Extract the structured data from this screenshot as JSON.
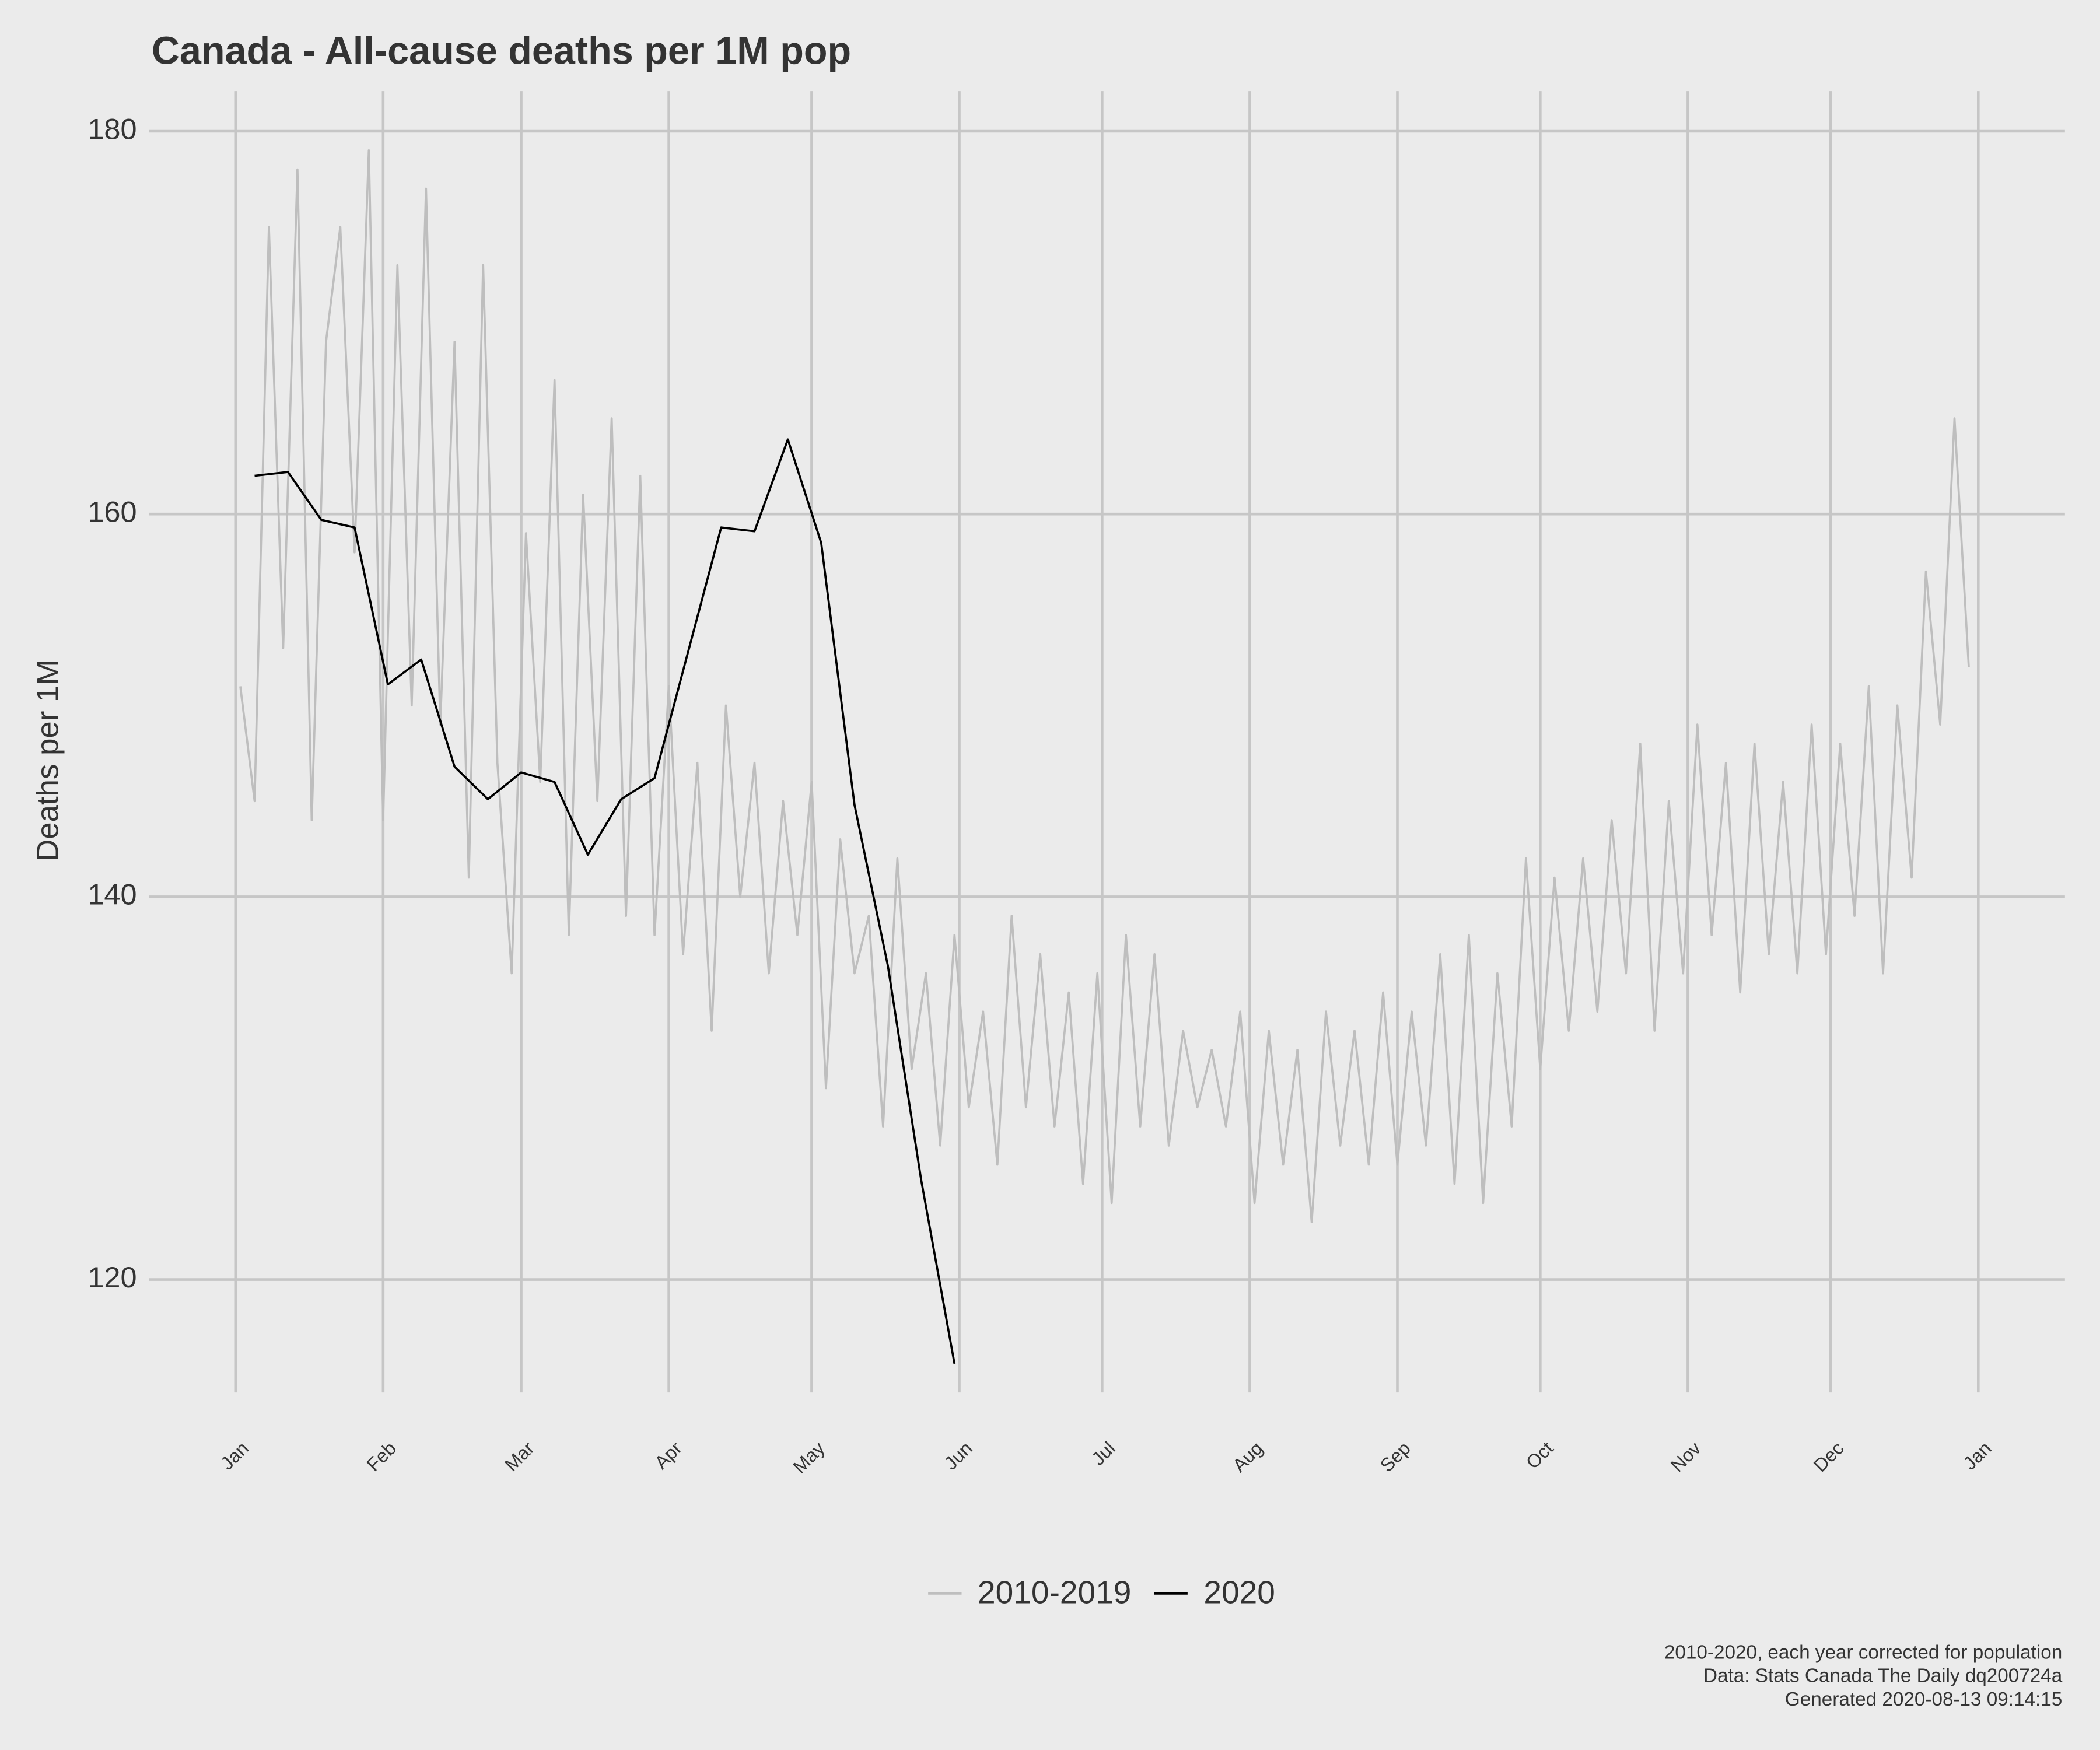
{
  "chart_data": {
    "type": "line",
    "title": "Canada - All-cause deaths per 1M pop",
    "ylabel": "Deaths per 1M",
    "caption": [
      "2010-2020, each year corrected for population",
      "Data: Stats Canada The Daily dq200724a",
      "Generated 2020-08-13 09:14:15"
    ],
    "xlim": [
      -18.2,
      384.2
    ],
    "xticks": [
      {
        "value": 0,
        "label": "Jan"
      },
      {
        "value": 31,
        "label": "Feb"
      },
      {
        "value": 60,
        "label": "Mar"
      },
      {
        "value": 91,
        "label": "Apr"
      },
      {
        "value": 121,
        "label": "May"
      },
      {
        "value": 152,
        "label": "Jun"
      },
      {
        "value": 182,
        "label": "Jul"
      },
      {
        "value": 213,
        "label": "Aug"
      },
      {
        "value": 244,
        "label": "Sep"
      },
      {
        "value": 274,
        "label": "Oct"
      },
      {
        "value": 305,
        "label": "Nov"
      },
      {
        "value": 335,
        "label": "Dec"
      },
      {
        "value": 366,
        "label": "Jan"
      }
    ],
    "ylim": [
      114.1,
      182.1
    ],
    "yticks": [
      120,
      140,
      160,
      180
    ],
    "grid": true,
    "legend": "bottom",
    "series": [
      {
        "name": "2010-2019",
        "color": "#bebebe",
        "x": [
          1,
          4,
          7,
          10,
          13,
          16,
          19,
          22,
          25,
          28,
          31,
          34,
          37,
          40,
          43,
          46,
          49,
          52,
          55,
          58,
          61,
          64,
          67,
          70,
          73,
          76,
          79,
          82,
          85,
          88,
          91,
          94,
          97,
          100,
          103,
          106,
          109,
          112,
          115,
          118,
          121,
          124,
          127,
          130,
          133,
          136,
          139,
          142,
          145,
          148,
          151,
          154,
          157,
          160,
          163,
          166,
          169,
          172,
          175,
          178,
          181,
          184,
          187,
          190,
          193,
          196,
          199,
          202,
          205,
          208,
          211,
          214,
          217,
          220,
          223,
          226,
          229,
          232,
          235,
          238,
          241,
          244,
          247,
          250,
          253,
          256,
          259,
          262,
          265,
          268,
          271,
          274,
          277,
          280,
          283,
          286,
          289,
          292,
          295,
          298,
          301,
          304,
          307,
          310,
          313,
          316,
          319,
          322,
          325,
          328,
          331,
          334,
          337,
          340,
          343,
          346,
          349,
          352,
          355,
          358,
          361,
          364
        ],
        "values": [
          151,
          145,
          175,
          153,
          178,
          144,
          169,
          175,
          158,
          179,
          144,
          173,
          150,
          177,
          149,
          169,
          141,
          173,
          147,
          136,
          159,
          146,
          167,
          138,
          161,
          145,
          165,
          139,
          162,
          138,
          151,
          137,
          147,
          133,
          150,
          140,
          147,
          136,
          145,
          138,
          146,
          130,
          143,
          136,
          139,
          128,
          142,
          131,
          136,
          127,
          138,
          129,
          134,
          126,
          139,
          129,
          137,
          128,
          135,
          125,
          136,
          124,
          138,
          128,
          137,
          127,
          133,
          129,
          132,
          128,
          134,
          124,
          133,
          126,
          132,
          123,
          134,
          127,
          133,
          126,
          135,
          126,
          134,
          127,
          137,
          125,
          138,
          124,
          136,
          128,
          142,
          131,
          141,
          133,
          142,
          134,
          144,
          136,
          148,
          133,
          145,
          136,
          149,
          138,
          147,
          135,
          148,
          137,
          146,
          136,
          149,
          137,
          148,
          139,
          151,
          136,
          150,
          141,
          157,
          149,
          165,
          152
        ]
      },
      {
        "name": "2020",
        "color": "#000000",
        "x": [
          4,
          11,
          18,
          25,
          32,
          39,
          46,
          53,
          60,
          67,
          74,
          81,
          88,
          102,
          109,
          116,
          123,
          130,
          137,
          144,
          151
        ],
        "values": [
          162.0,
          162.2,
          159.7,
          159.3,
          151.1,
          152.4,
          146.8,
          145.1,
          146.5,
          146.0,
          142.2,
          145.1,
          146.2,
          159.3,
          159.1,
          163.9,
          158.5,
          144.8,
          136.4,
          125.2,
          115.6
        ]
      }
    ]
  }
}
